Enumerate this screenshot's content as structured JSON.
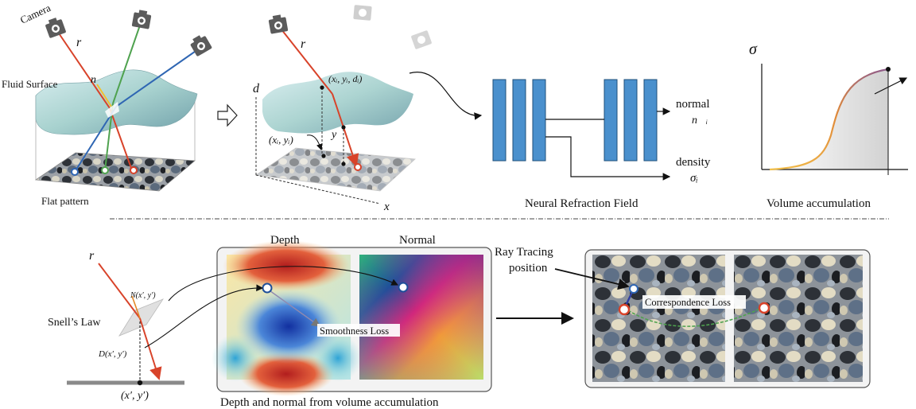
{
  "panel_a": {
    "camera_label": "Camera",
    "ray_label": "r",
    "normal_label": "n⃗",
    "surface_label": "Fluid Surface",
    "pattern_label": "Flat pattern"
  },
  "panel_b": {
    "ray_label": "r",
    "d_axis": "d",
    "x_axis": "x",
    "y_axis": "y",
    "surface_point": "(xᵢ, yᵢ, dᵢ)",
    "ground_point": "(xᵢ, yᵢ)"
  },
  "network": {
    "output_normal": "normal",
    "output_normal_sym": "n⃗ᵢ",
    "output_density": "density",
    "output_density_sym": "σᵢ",
    "caption": "Neural Refraction Field"
  },
  "volume_plot": {
    "y_label": "σ",
    "caption": "Volume accumulation"
  },
  "snell": {
    "ray_label": "r",
    "law_label": "Snell’s Law",
    "normal_point": "N(x′, y′)",
    "depth_point": "D(x′, y′)",
    "ground_point": "(x′, y′)"
  },
  "maps": {
    "depth_title": "Depth",
    "normal_title": "Normal",
    "loss_label": "Smoothness Loss",
    "caption": "Depth and normal from volume accumulation"
  },
  "tracing": {
    "title_line1": "Ray Tracing",
    "title_line2": "position",
    "loss_label": "Correspondence Loss"
  },
  "colors": {
    "ray_red": "#d8432a",
    "ray_green": "#4fa24f",
    "ray_blue": "#2f66b3",
    "network_block": "#4a90cd",
    "network_block_stroke": "#1f4f7a",
    "curve_start": "#f3c14a",
    "curve_end": "#b2586e"
  }
}
